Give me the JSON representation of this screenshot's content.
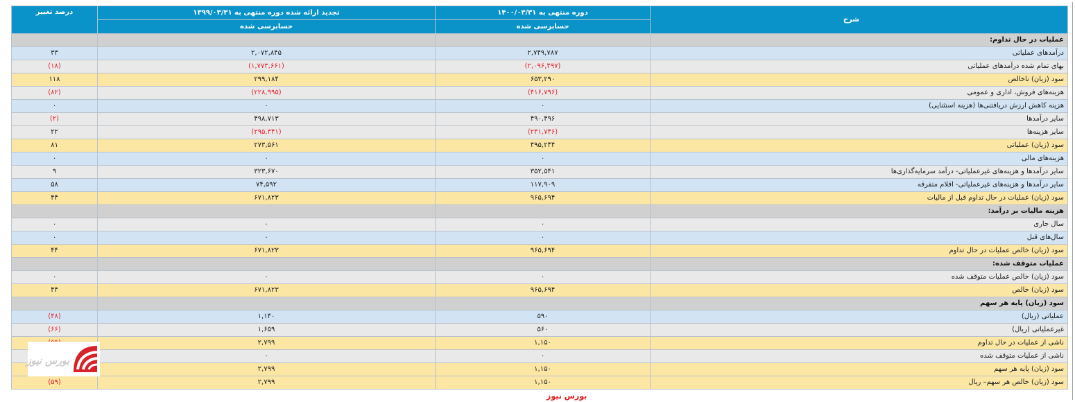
{
  "headers": {
    "description": "شرح",
    "period_current": "دوره منتهی به ۱۴۰۰/۰۳/۳۱",
    "period_previous": "تجدید ارائه شده دوره منتهی به ۱۳۹۹/۰۳/۳۱",
    "change_percent": "درصد تغییر",
    "audit_current": "حسابرسی شده",
    "audit_previous": "حسابرسی شده"
  },
  "rows": [
    {
      "style": "section",
      "description": "عملیات در حال تداوم:",
      "current": "",
      "previous": "",
      "change": ""
    },
    {
      "style": "blue",
      "description": "درآمدهای عملیاتی",
      "current": "۲,۷۴۹,۷۸۷",
      "previous": "۲,۰۷۲,۸۴۵",
      "change": "۳۳"
    },
    {
      "style": "gray",
      "description": "بهای تمام شده درآمدهای عملیاتی",
      "current": "(۲,۰۹۶,۴۹۷)",
      "previous": "(۱,۷۷۳,۶۶۱)",
      "change": "(۱۸)"
    },
    {
      "style": "yellow",
      "description": "سود (زیان) ناخالص",
      "current": "۶۵۳,۲۹۰",
      "previous": "۲۹۹,۱۸۴",
      "change": "۱۱۸"
    },
    {
      "style": "gray",
      "description": "هزینه‌های فروش، اداری و عمومی",
      "current": "(۴۱۶,۷۹۶)",
      "previous": "(۲۲۸,۹۹۵)",
      "change": "(۸۲)"
    },
    {
      "style": "blue",
      "description": "هزینه کاهش ارزش دریافتنی‌ها (هزینه استثنایی)",
      "current": "۰",
      "previous": "۰",
      "change": "۰"
    },
    {
      "style": "gray",
      "description": "سایر درآمدها",
      "current": "۴۹۰,۴۹۶",
      "previous": "۴۹۸,۷۱۳",
      "change": "(۲)"
    },
    {
      "style": "gray",
      "description": "سایر هزینه‌ها",
      "current": "(۲۳۱,۷۴۶)",
      "previous": "(۲۹۵,۳۴۱)",
      "change": "۲۲"
    },
    {
      "style": "yellow",
      "description": "سود (زیان) عملیاتی",
      "current": "۴۹۵,۲۴۴",
      "previous": "۲۷۳,۵۶۱",
      "change": "۸۱"
    },
    {
      "style": "blue",
      "description": "هزینه‌های مالی",
      "current": "۰",
      "previous": "۰",
      "change": "۰"
    },
    {
      "style": "gray",
      "description": "سایر درآمدها و هزینه‌های غیرعملیاتی- درآمد سرمایه‌گذاری‌ها",
      "current": "۳۵۲,۵۴۱",
      "previous": "۳۲۳,۶۷۰",
      "change": "۹"
    },
    {
      "style": "blue",
      "description": "سایر درآمدها و هزینه‌های غیرعملیاتی- اقلام متفرقه",
      "current": "۱۱۷,۹۰۹",
      "previous": "۷۴,۵۹۲",
      "change": "۵۸"
    },
    {
      "style": "yellow",
      "description": "سود (زیان) عملیات در حال تداوم قبل از مالیات",
      "current": "۹۶۵,۶۹۴",
      "previous": "۶۷۱,۸۲۳",
      "change": "۴۴"
    },
    {
      "style": "section",
      "description": "هزینه مالیات بر درآمد:",
      "current": "",
      "previous": "",
      "change": ""
    },
    {
      "style": "gray",
      "description": "سال جاری",
      "current": "۰",
      "previous": "۰",
      "change": "۰"
    },
    {
      "style": "blue",
      "description": "سال‌های قبل",
      "current": "۰",
      "previous": "۰",
      "change": "۰"
    },
    {
      "style": "yellow",
      "description": "سود (زیان) خالص عملیات در حال تداوم",
      "current": "۹۶۵,۶۹۴",
      "previous": "۶۷۱,۸۲۳",
      "change": "۴۴"
    },
    {
      "style": "section",
      "description": "عملیات متوقف شده:",
      "current": "",
      "previous": "",
      "change": ""
    },
    {
      "style": "gray",
      "description": "سود (زیان) خالص عملیات متوقف شده",
      "current": "۰",
      "previous": "۰",
      "change": "۰"
    },
    {
      "style": "yellow",
      "description": "سود (زیان) خالص",
      "current": "۹۶۵,۶۹۴",
      "previous": "۶۷۱,۸۲۳",
      "change": "۴۴"
    },
    {
      "style": "section",
      "description": "سود (زیان) پایه هر سهم",
      "current": "",
      "previous": "",
      "change": ""
    },
    {
      "style": "blue",
      "description": "عملیاتی (ریال)",
      "current": "۵۹۰",
      "previous": "۱,۱۴۰",
      "change": "(۴۸)"
    },
    {
      "style": "gray",
      "description": "غیرعملیاتی (ریال)",
      "current": "۵۶۰",
      "previous": "۱,۶۵۹",
      "change": "(۶۶)"
    },
    {
      "style": "yellow",
      "description": "ناشی از عملیات در حال تداوم",
      "current": "۱,۱۵۰",
      "previous": "۲,۷۹۹",
      "change": "(۵۹)"
    },
    {
      "style": "gray",
      "description": "ناشی از عملیات متوقف شده",
      "current": "۰",
      "previous": "۰",
      "change": "۰"
    },
    {
      "style": "yellow",
      "description": "سود (زیان) پایه هر سهم",
      "current": "۱,۱۵۰",
      "previous": "۲,۷۹۹",
      "change": "(۵۹)"
    },
    {
      "style": "yellow",
      "description": "سود (زیان) خالص هر سهم– ریال",
      "current": "۱,۱۵۰",
      "previous": "۲,۷۹۹",
      "change": "(۵۹)"
    }
  ],
  "logo_text": "بورس نیوز",
  "watermark": "بورس نیوز",
  "colors": {
    "header": "#0993c9",
    "negative": "#e8212b",
    "blue_row": "#d2e4f4",
    "yellow_row": "#fbe6a4",
    "section_row": "#d0d0d0"
  }
}
